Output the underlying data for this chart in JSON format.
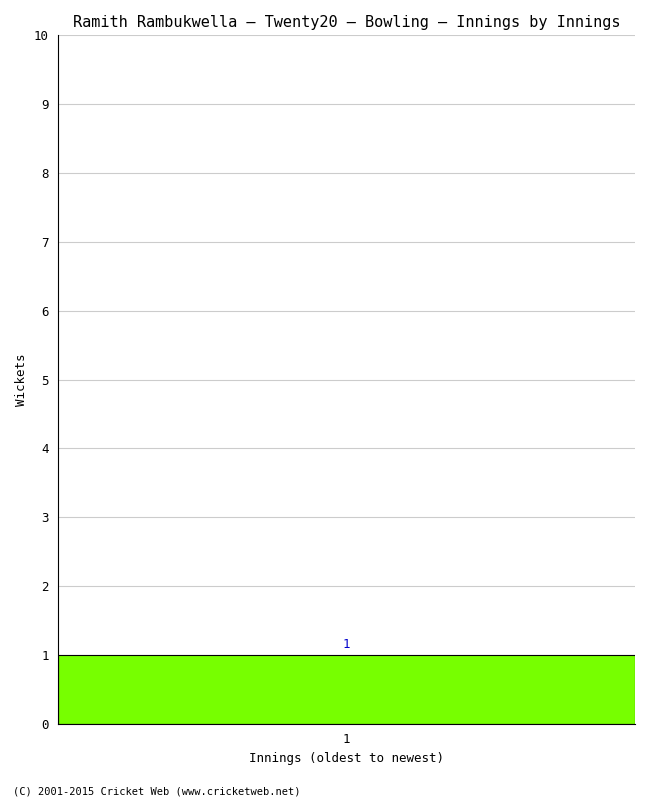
{
  "title": "Ramith Rambukwella – Twenty20 – Bowling – Innings by Innings",
  "xlabel": "Innings (oldest to newest)",
  "ylabel": "Wickets",
  "ylim": [
    0,
    10
  ],
  "yticks": [
    0,
    1,
    2,
    3,
    4,
    5,
    6,
    7,
    8,
    9,
    10
  ],
  "innings": [
    1
  ],
  "wickets": [
    1
  ],
  "bar_color": "#77ff00",
  "bar_edge_color": "#000000",
  "background_color": "#ffffff",
  "grid_color": "#cccccc",
  "annotation_color": "#0000cc",
  "copyright": "(C) 2001-2015 Cricket Web (www.cricketweb.net)",
  "title_fontsize": 11,
  "label_fontsize": 9,
  "tick_fontsize": 9,
  "annotation_fontsize": 9,
  "bar_width": 1.0,
  "xlim": [
    0.5,
    1.5
  ]
}
